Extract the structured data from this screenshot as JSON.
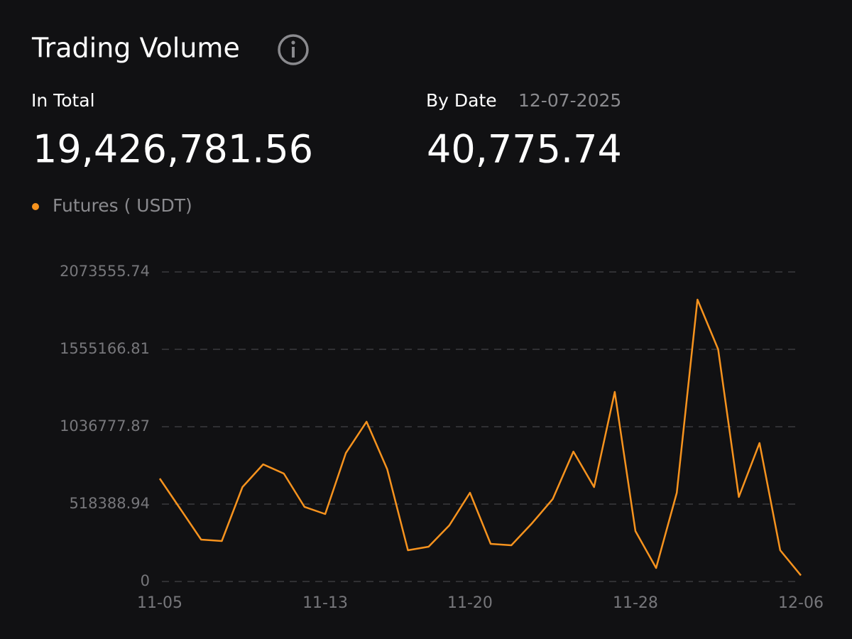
{
  "header": {
    "title": "Trading Volume",
    "total_label": "In Total",
    "total_value": "19,426,781.56",
    "date_label": "By Date",
    "date": "12-07-2025",
    "date_value": "40,775.74"
  },
  "chart_data": {
    "type": "line",
    "categories": [
      "11-05",
      null,
      null,
      null,
      null,
      null,
      null,
      null,
      "11-13",
      null,
      null,
      null,
      null,
      null,
      null,
      "11-20",
      null,
      null,
      null,
      null,
      null,
      null,
      null,
      "11-28",
      null,
      null,
      null,
      null,
      null,
      null,
      null,
      "12-06"
    ],
    "series": [
      {
        "name": "Futures ( USDT)",
        "color": "#f7931e",
        "values": [
          689600,
          485100,
          280600,
          271100,
          632500,
          784700,
          722900,
          499400,
          451800,
          860800,
          1070100,
          751400,
          209300,
          233000,
          375700,
          594500,
          252100,
          242600,
          390000,
          551700,
          870300,
          632500,
          1269900,
          337700,
          90400,
          594500,
          1888100,
          1555200,
          566000,
          927400,
          209300,
          40775.74
        ]
      }
    ],
    "ylim": [
      0,
      2073555.74
    ],
    "yticks": [
      0,
      518388.94,
      1036777.87,
      1555166.81,
      2073555.74
    ],
    "grid": true
  }
}
